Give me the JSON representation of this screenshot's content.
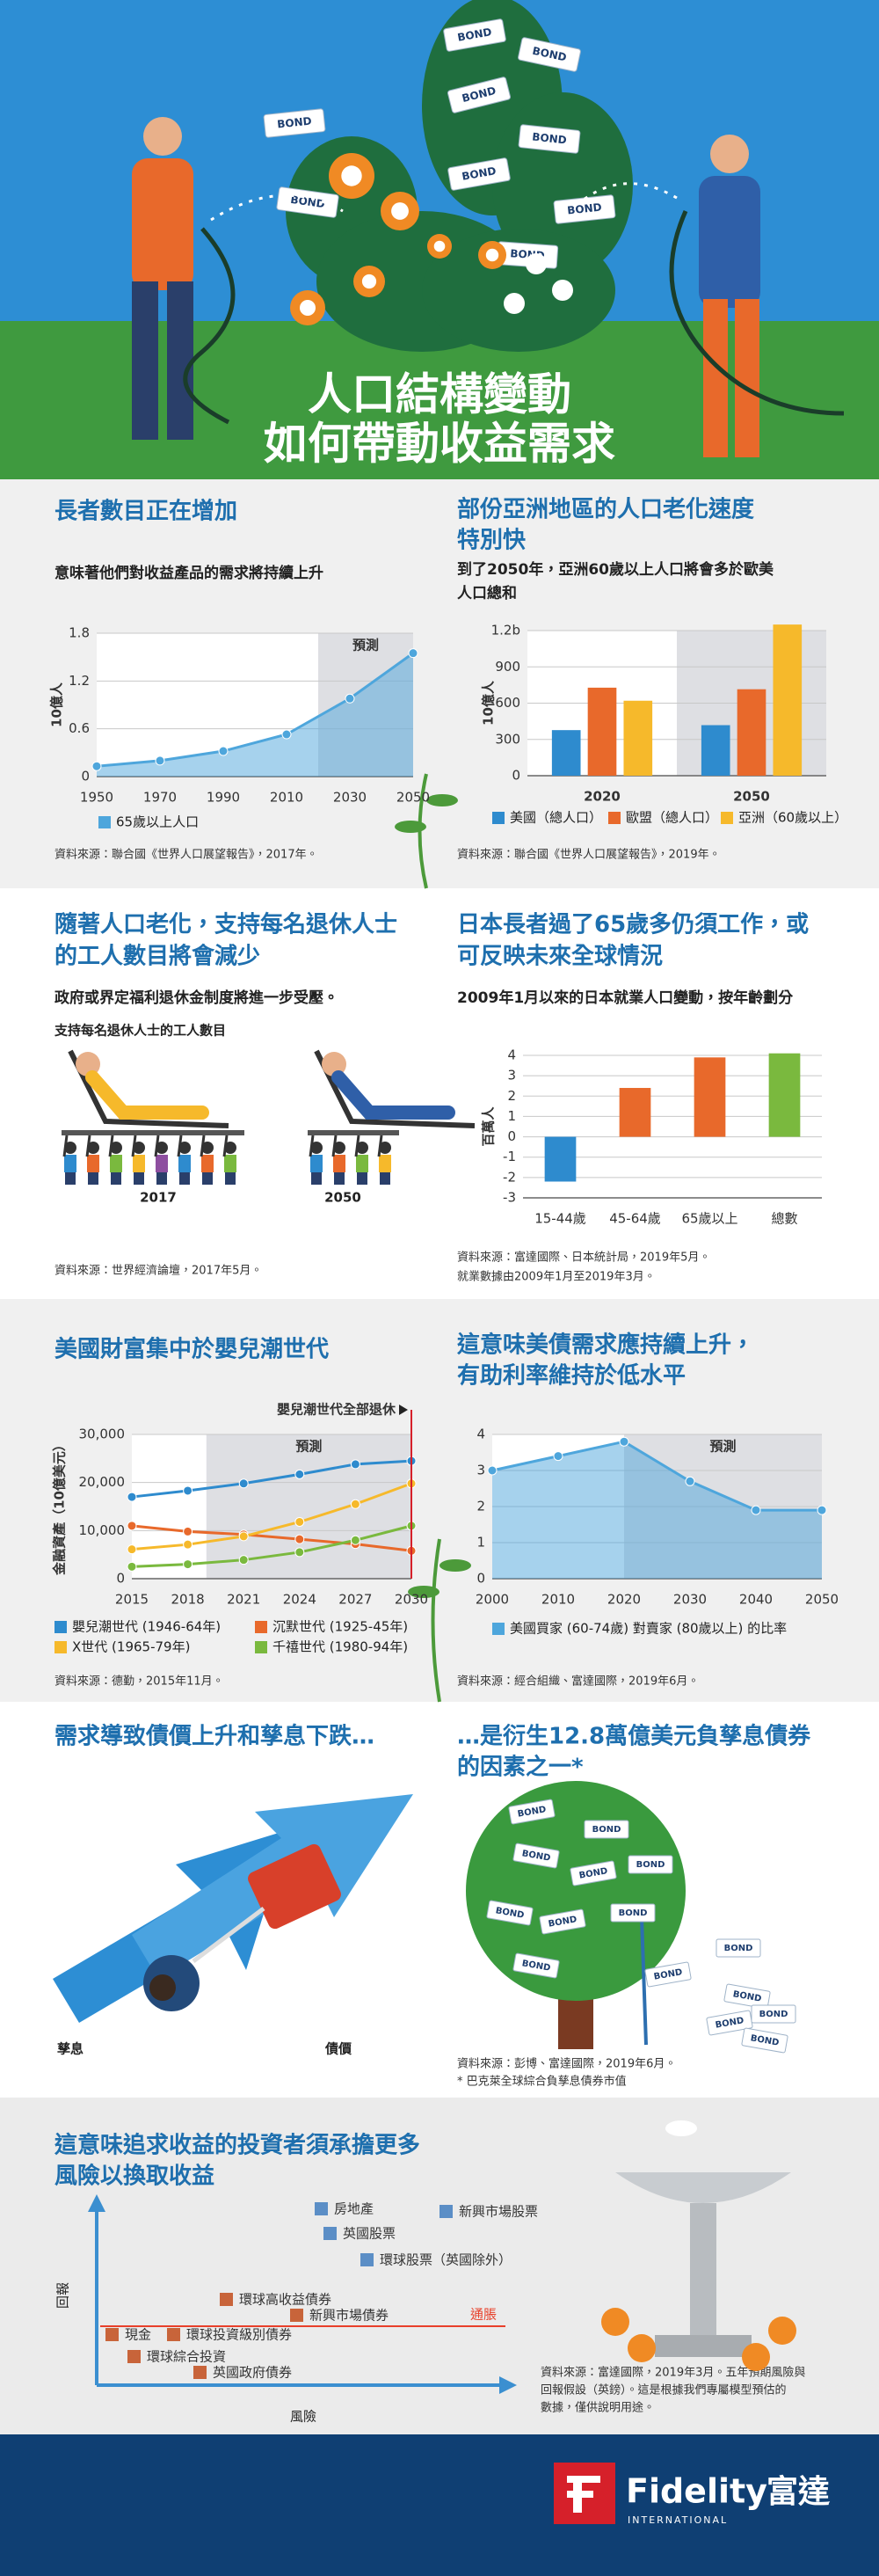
{
  "hero": {
    "title_lines": [
      "人口結構變動",
      "如何帶動收益需求"
    ],
    "bond_label": "BOND"
  },
  "panels": [
    {
      "title_lines": [
        "長者數目正在增加"
      ],
      "subtitle_lines": [
        "意味著他們對收益產品的需求將持續上升"
      ],
      "source_lines": [
        "資料來源：聯合國《世界人口展望報告》，2017年。"
      ]
    },
    {
      "title_lines": [
        "部份亞洲地區的人口老化速度",
        "特別快"
      ],
      "subtitle_lines": [
        "到了2050年，亞洲60歲以上人口將會多於歐美",
        "人口總和"
      ],
      "source_lines": [
        "資料來源：聯合國《世界人口展望報告》，2019年。"
      ]
    },
    {
      "title_lines": [
        "隨著人口老化，支持每名退休人士",
        "的工人數目將會減少"
      ],
      "subtitle_lines": [
        "政府或界定福利退休金制度將進一步受壓。"
      ],
      "caption": "支持每名退休人士的工人數目",
      "year_labels": [
        "2017",
        "2050"
      ],
      "source_lines": [
        "資料來源：世界經濟論壇，2017年5月。"
      ]
    },
    {
      "title_lines": [
        "日本長者過了65歲多仍須工作，或",
        "可反映未來全球情況"
      ],
      "subtitle_lines": [
        "2009年1月以來的日本就業人口變動，按年齡劃分"
      ],
      "source_lines": [
        "資料來源：富達國際、日本統計局，2019年5月。",
        "就業數據由2009年1月至2019年3月。"
      ]
    },
    {
      "title_lines": [
        "美國財富集中於嬰兒潮世代"
      ],
      "source_lines": [
        "資料來源：德勤，2015年11月。"
      ]
    },
    {
      "title_lines": [
        "這意味美債需求應持續上升，",
        "有助利率維持於低水平"
      ],
      "source_lines": [
        "資料來源：經合組織、富達國際，2019年6月。"
      ]
    },
    {
      "title_lines": [
        "需求導致債價上升和孳息下跌…"
      ],
      "labels": [
        "孳息",
        "債價"
      ]
    },
    {
      "title_lines": [
        "…是衍生12.8萬億美元負孳息債券",
        "的因素之一*"
      ],
      "source_lines": [
        "資料來源：彭博、富達國際，2019年6月。",
        "* 巴克萊全球綜合負孳息債券市值"
      ]
    },
    {
      "title_lines": [
        "這意味追求收益的投資者須承擔更多",
        "風險以換取收益"
      ],
      "y_label": "回報",
      "x_label": "風險",
      "inflation": "通脹",
      "items": [
        {
          "name": "房地產",
          "color": "#5b8ec6"
        },
        {
          "name": "新興市場股票",
          "color": "#5b8ec6"
        },
        {
          "name": "英國股票",
          "color": "#5b8ec6"
        },
        {
          "name": "環球股票（英國除外）",
          "color": "#5b8ec6"
        },
        {
          "name": "環球高收益債券",
          "color": "#c8643a"
        },
        {
          "name": "新興市場債券",
          "color": "#c8643a"
        },
        {
          "name": "現金",
          "color": "#c8643a"
        },
        {
          "name": "環球投資級別債券",
          "color": "#c8643a"
        },
        {
          "name": "環球綜合投資",
          "color": "#c8643a"
        },
        {
          "name": "英國政府債券",
          "color": "#c8643a"
        }
      ],
      "source_lines": [
        "資料來源：富達國際，2019年3月。五年預期風險與",
        "回報假設（英鎊）。這是根據我們專屬模型預估的",
        "數據，僅供說明用途。"
      ]
    }
  ],
  "footer": {
    "brand": "Fidelity",
    "brand_zh": "富達",
    "sub": "INTERNATIONAL"
  },
  "chart_data": [
    {
      "type": "area",
      "y_label": "10億人",
      "x": [
        1950,
        1970,
        1990,
        2010,
        2030,
        2050
      ],
      "xlim": [
        1950,
        2050
      ],
      "ylim": [
        0,
        1.8
      ],
      "yticks": [
        0,
        0.6,
        1.2,
        1.8
      ],
      "grid": true,
      "forecast_start": 2020,
      "forecast_label": "預測",
      "series": [
        {
          "name": "65歲以上人口",
          "color": "#4ea6dc",
          "values": [
            0.13,
            0.2,
            0.32,
            0.53,
            0.98,
            1.55
          ]
        }
      ]
    },
    {
      "type": "bar",
      "y_label": "10億人",
      "categories": [
        "2020",
        "2050"
      ],
      "ylim": [
        0,
        1200
      ],
      "yticks": [
        0,
        300,
        600,
        900,
        {
          "value": 1200,
          "label": "1.2b"
        }
      ],
      "grid": true,
      "series": [
        {
          "name": "美國（總人口）",
          "color": "#2e8bce",
          "values": [
            377,
            418
          ]
        },
        {
          "name": "歐盟（總人口）",
          "color": "#e8692b",
          "values": [
            728,
            715
          ]
        },
        {
          "name": "亞洲（60歲以上）",
          "color": "#f6b92b",
          "values": [
            620,
            1250
          ]
        }
      ]
    },
    {
      "type": "bar",
      "y_label": "百萬人",
      "categories": [
        "15-44歲",
        "45-64歲",
        "65歲以上",
        "總數"
      ],
      "values": [
        -2.2,
        2.4,
        3.9,
        4.1
      ],
      "colors": [
        "#2e8bce",
        "#e8692b",
        "#e8692b",
        "#7ab93e"
      ],
      "ylim": [
        -3,
        4
      ],
      "yticks": [
        -3,
        -2,
        -1,
        0,
        1,
        2,
        3,
        4
      ],
      "grid": true
    },
    {
      "type": "line",
      "y_label": "金融資產（10億美元）",
      "x": [
        2015,
        2018,
        2021,
        2024,
        2027,
        2030
      ],
      "xlim": [
        2015,
        2030
      ],
      "ylim": [
        0,
        30000
      ],
      "yticks": [
        0,
        {
          "value": 10000,
          "label": "10,000"
        },
        {
          "value": 20000,
          "label": "20,000"
        },
        {
          "value": 30000,
          "label": "30,000"
        }
      ],
      "grid": true,
      "forecast_start": 2019,
      "forecast_label": "預測",
      "annotation": {
        "text": "嬰兒潮世代全部退休",
        "x": 2030
      },
      "series": [
        {
          "name": "嬰兒潮世代 (1946-64年)",
          "color": "#2e8bce",
          "values": [
            17000,
            18300,
            19800,
            21700,
            23800,
            24500
          ]
        },
        {
          "name": "沉默世代 (1925-45年)",
          "color": "#e8692b",
          "values": [
            11000,
            9800,
            9200,
            8200,
            7200,
            5800
          ]
        },
        {
          "name": "X世代 (1965-79年)",
          "color": "#f6b92b",
          "values": [
            6100,
            7100,
            8800,
            11800,
            15500,
            19800
          ]
        },
        {
          "name": "千禧世代 (1980-94年)",
          "color": "#7ab93e",
          "values": [
            2500,
            3000,
            3900,
            5500,
            8000,
            11000
          ]
        }
      ]
    },
    {
      "type": "area",
      "x": [
        2000,
        2010,
        2020,
        2030,
        2040,
        2050
      ],
      "xlim": [
        2000,
        2050
      ],
      "ylim": [
        0,
        4
      ],
      "yticks": [
        0,
        1,
        2,
        3,
        4
      ],
      "grid": true,
      "forecast_start": 2020,
      "forecast_label": "預測",
      "series": [
        {
          "name": "美國買家 (60-74歲) 對賣家 (80歲以上) 的比率",
          "color": "#4ea6dc",
          "values": [
            3.0,
            3.4,
            3.8,
            2.7,
            1.9,
            1.9
          ]
        }
      ]
    }
  ]
}
